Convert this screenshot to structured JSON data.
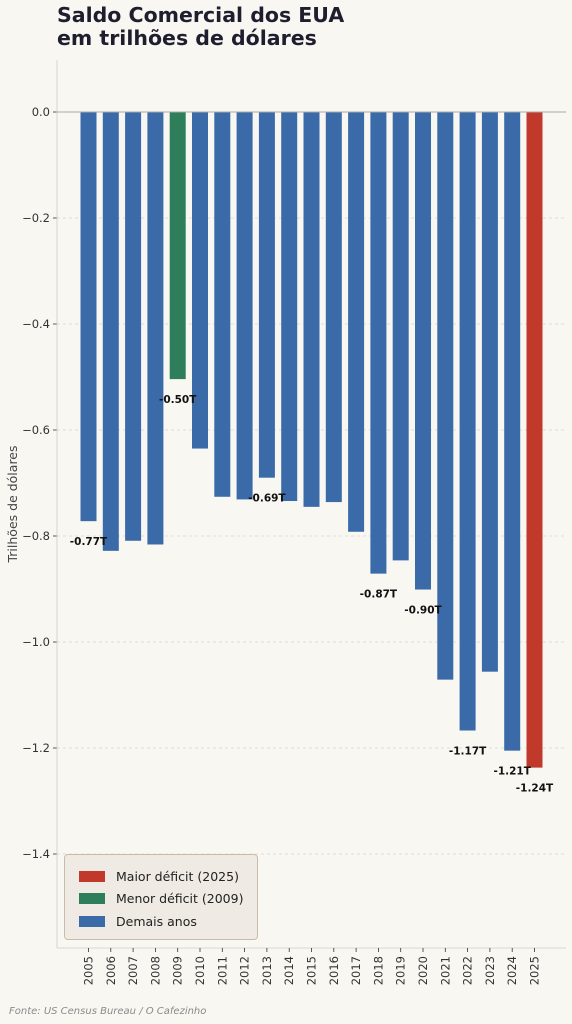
{
  "title_lines": [
    "Saldo Comercial dos EUA",
    "em trilhões de dólares"
  ],
  "source": "Fonte: US Census Bureau / O Cafezinho",
  "colors": {
    "max": "#c0392b",
    "min": "#2e7d5b",
    "other": "#3b6aa9",
    "label": "#111111",
    "tick": "#333333",
    "grid": "#d9d6d0",
    "zero_line": "#aaaaaa"
  },
  "legend": {
    "position": "bottom-left",
    "items": [
      {
        "label": "Maior déficit (2025)",
        "color_key": "max"
      },
      {
        "label": "Menor déficit (2009)",
        "color_key": "min"
      },
      {
        "label": "Demais anos",
        "color_key": "other"
      }
    ]
  },
  "chart_data": {
    "type": "bar",
    "ylabel": "Trilhões de dólares",
    "xlabel": "",
    "ylim": [
      -1.58,
      0.1
    ],
    "yticks": [
      0.0,
      -0.2,
      -0.4,
      -0.6,
      -0.8,
      -1.0,
      -1.2,
      -1.4
    ],
    "ytick_labels": [
      "0.0",
      "−0.2",
      "−0.4",
      "−0.6",
      "−0.8",
      "−1.0",
      "−1.2",
      "−1.4"
    ],
    "grid": "horizontal dashed",
    "categories": [
      "2005",
      "2006",
      "2007",
      "2008",
      "2009",
      "2010",
      "2011",
      "2012",
      "2013",
      "2014",
      "2015",
      "2016",
      "2017",
      "2018",
      "2019",
      "2020",
      "2021",
      "2022",
      "2023",
      "2024",
      "2025"
    ],
    "values": [
      -0.772,
      -0.828,
      -0.809,
      -0.816,
      -0.504,
      -0.635,
      -0.726,
      -0.731,
      -0.69,
      -0.734,
      -0.745,
      -0.736,
      -0.792,
      -0.871,
      -0.846,
      -0.901,
      -1.071,
      -1.167,
      -1.056,
      -1.205,
      -1.237
    ],
    "highlight": {
      "2025": "max",
      "2009": "min"
    },
    "data_labels": [
      {
        "index": 0,
        "text": "-0.77T"
      },
      {
        "index": 4,
        "text": "-0.50T"
      },
      {
        "index": 8,
        "text": "-0.69T"
      },
      {
        "index": 13,
        "text": "-0.87T"
      },
      {
        "index": 15,
        "text": "-0.90T"
      },
      {
        "index": 17,
        "text": "-1.17T"
      },
      {
        "index": 19,
        "text": "-1.21T"
      },
      {
        "index": 20,
        "text": "-1.24T"
      }
    ]
  }
}
